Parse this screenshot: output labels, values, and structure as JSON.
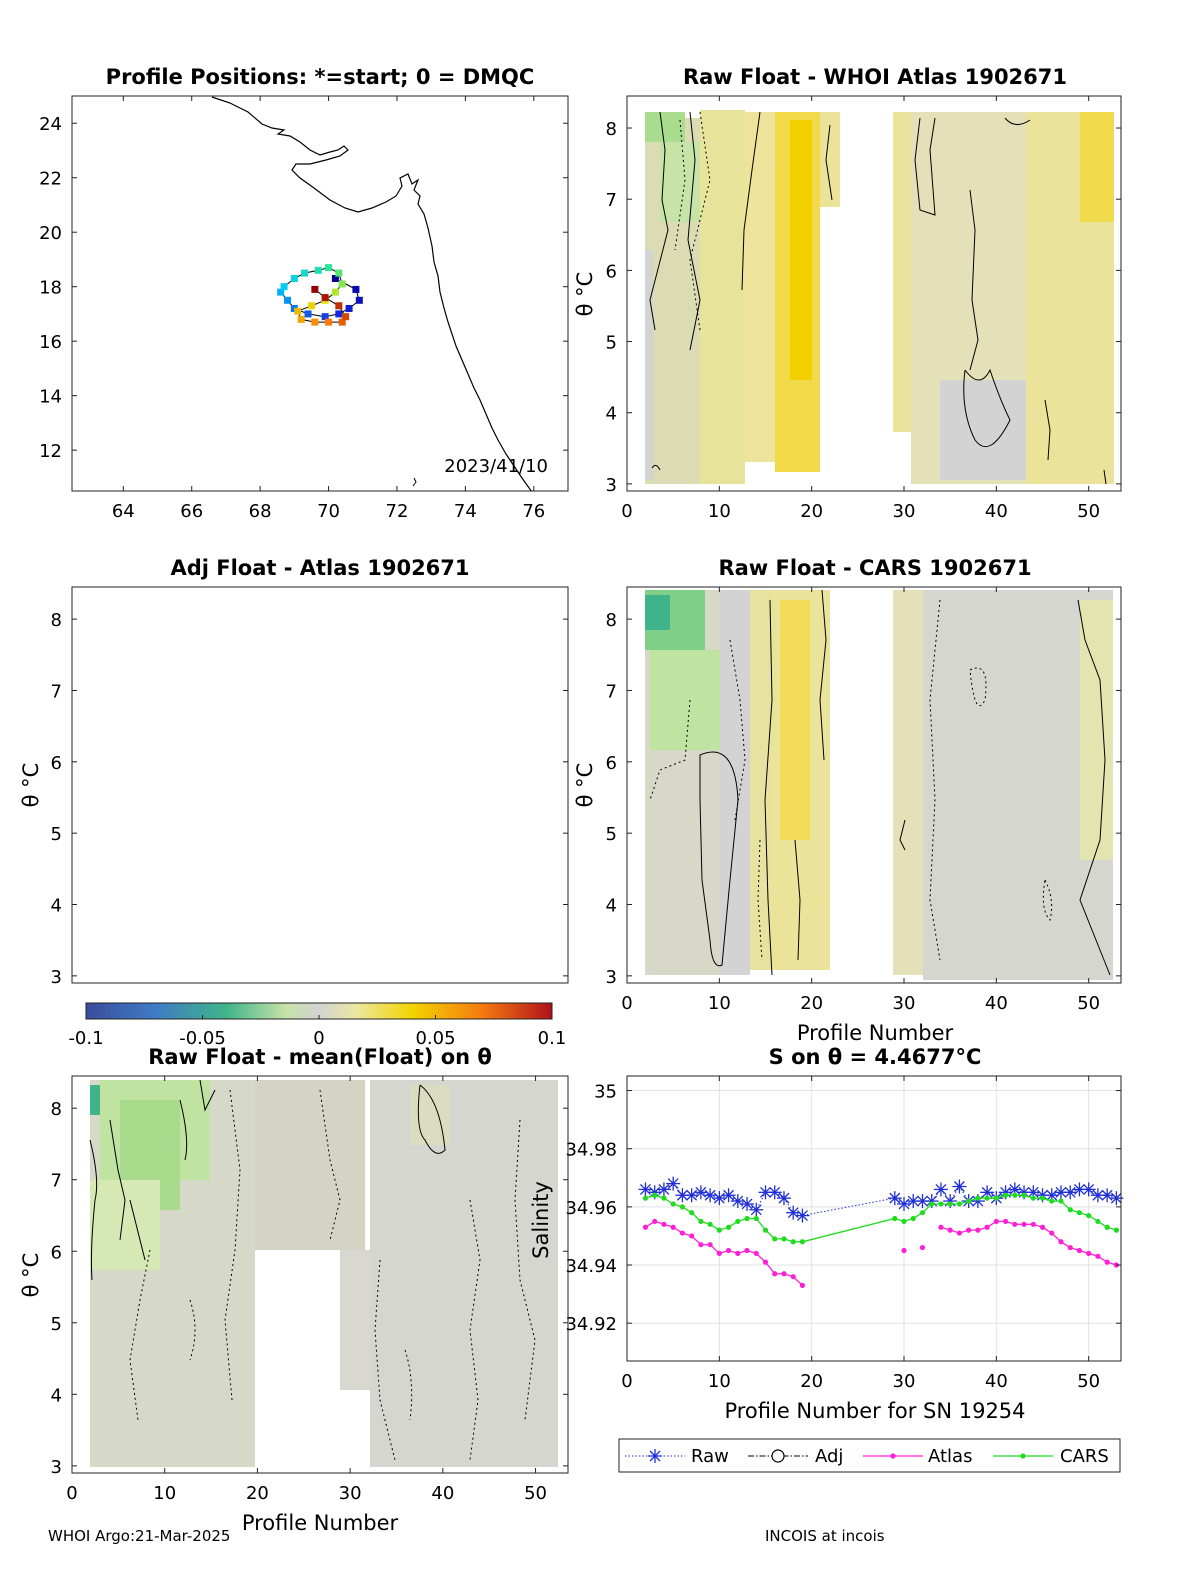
{
  "colors": {
    "raw": "#1f2fd6",
    "adj": "#000000",
    "atlas": "#ff1fd6",
    "cars": "#1fdc1f",
    "contour": "#000000",
    "no_diff": "#d3d3d3"
  },
  "panels": {
    "positions": {
      "title": "Profile Positions: *=start; 0 = DMQC",
      "date_label": "2023/41/10",
      "x_ticks": [
        "64",
        "66",
        "68",
        "70",
        "72",
        "74",
        "76"
      ],
      "y_ticks": [
        "12",
        "14",
        "16",
        "18",
        "20",
        "22",
        "24"
      ]
    },
    "whoi": {
      "title": "Raw Float - WHOI Atlas  1902671",
      "x_ticks": [
        "0",
        "10",
        "20",
        "30",
        "40",
        "50"
      ],
      "y_ticks": [
        "3",
        "4",
        "5",
        "6",
        "7",
        "8"
      ],
      "ylabel": "θ °C"
    },
    "adj": {
      "title": "Adj Float - Atlas  1902671",
      "y_ticks": [
        "3",
        "4",
        "5",
        "6",
        "7",
        "8"
      ],
      "ylabel": "θ °C"
    },
    "cars": {
      "title": "Raw Float - CARS  1902671",
      "x_ticks": [
        "0",
        "10",
        "20",
        "30",
        "40",
        "50"
      ],
      "y_ticks": [
        "3",
        "4",
        "5",
        "6",
        "7",
        "8"
      ],
      "xlabel": "Profile Number",
      "ylabel": "θ °C"
    },
    "mean": {
      "title": "Raw Float - mean(Float) on θ",
      "x_ticks": [
        "0",
        "10",
        "20",
        "30",
        "40",
        "50"
      ],
      "y_ticks": [
        "3",
        "4",
        "5",
        "6",
        "7",
        "8"
      ],
      "xlabel": "Profile Number",
      "ylabel": "θ °C"
    },
    "salinity": {
      "title": "S on θ = 4.4677°C",
      "x_ticks": [
        "0",
        "10",
        "20",
        "30",
        "40",
        "50"
      ],
      "y_ticks": [
        "34.92",
        "34.94",
        "34.96",
        "34.98",
        "35"
      ],
      "xlabel": "Profile Number for SN 19254",
      "ylabel": "Salinity"
    }
  },
  "colorbar": {
    "tick_labels": [
      "-0.1",
      "-0.05",
      "0",
      "0.05",
      "0.1"
    ],
    "range": [
      -0.1,
      0.1
    ]
  },
  "legend": {
    "raw": "Raw",
    "adj": "Adj",
    "atlas": "Atlas",
    "cars": "CARS"
  },
  "footer": {
    "left": "WHOI Argo:21-Mar-2025",
    "right": "INCOIS at incois"
  },
  "chart_data": [
    {
      "type": "scatter",
      "title": "Profile Positions: *=start; 0 = DMQC",
      "xlim": [
        62.5,
        77
      ],
      "ylim": [
        10.5,
        25
      ],
      "x": [
        70.2,
        70.8,
        70.9,
        70.6,
        70.3,
        69.9,
        69.4,
        69.0,
        68.8,
        68.6,
        68.7,
        69.0,
        69.3,
        69.7,
        70.0,
        70.3,
        70.4,
        70.2,
        69.9,
        69.5,
        69.1,
        69.2,
        69.6,
        70.0,
        70.4,
        70.5,
        70.3,
        69.9,
        69.6
      ],
      "y": [
        18.3,
        17.9,
        17.5,
        17.2,
        17.0,
        16.9,
        17.0,
        17.2,
        17.5,
        17.8,
        18.0,
        18.3,
        18.5,
        18.6,
        18.7,
        18.5,
        18.1,
        17.8,
        17.5,
        17.3,
        17.1,
        16.8,
        16.7,
        16.7,
        16.7,
        16.9,
        17.3,
        17.6,
        17.9
      ]
    },
    {
      "type": "heatmap",
      "title": "Raw Float - WHOI Atlas  1902671",
      "xlabel": "",
      "ylabel": "θ °C",
      "xlim": [
        0,
        53.5
      ],
      "ylim": [
        2.9,
        8.45
      ],
      "value_range": [
        -0.1,
        0.1
      ],
      "missing_profiles": [
        20,
        21,
        22,
        23,
        24,
        25,
        26,
        27,
        28,
        29
      ]
    },
    {
      "type": "heatmap",
      "title": "Adj Float - Atlas  1902671",
      "ylabel": "θ °C",
      "ylim": [
        2.9,
        8.45
      ],
      "value_range": [
        -0.1,
        0.1
      ]
    },
    {
      "type": "heatmap",
      "title": "Raw Float - CARS  1902671",
      "xlabel": "Profile Number",
      "ylabel": "θ °C",
      "xlim": [
        0,
        53.5
      ],
      "ylim": [
        2.9,
        8.45
      ],
      "value_range": [
        -0.1,
        0.1
      ],
      "missing_profiles": [
        20,
        21,
        22,
        23,
        24,
        25,
        26,
        27,
        28,
        29
      ]
    },
    {
      "type": "heatmap",
      "title": "Raw Float - mean(Float) on θ",
      "xlabel": "Profile Number",
      "ylabel": "θ °C",
      "xlim": [
        0,
        53.5
      ],
      "ylim": [
        2.9,
        8.45
      ],
      "value_range": [
        -0.1,
        0.1
      ]
    },
    {
      "type": "line",
      "title": "S on θ = 4.4677°C",
      "xlabel": "Profile Number for SN 19254",
      "ylabel": "Salinity",
      "xlim": [
        0,
        53.5
      ],
      "ylim": [
        34.907,
        35.005
      ],
      "grid": true,
      "legend_position": "below",
      "series": [
        {
          "name": "Raw",
          "x": [
            2,
            3,
            4,
            5,
            6,
            7,
            8,
            9,
            10,
            11,
            12,
            13,
            14,
            15,
            16,
            17,
            18,
            19,
            29,
            30,
            31,
            32,
            33,
            34,
            35,
            36,
            37,
            38,
            39,
            40,
            41,
            42,
            43,
            44,
            45,
            46,
            47,
            48,
            49,
            50,
            51,
            52,
            53
          ],
          "y": [
            34.966,
            34.965,
            34.966,
            34.968,
            34.964,
            34.964,
            34.965,
            34.964,
            34.963,
            34.964,
            34.962,
            34.961,
            34.959,
            34.965,
            34.965,
            34.963,
            34.958,
            34.957,
            34.963,
            34.961,
            34.962,
            34.962,
            34.962,
            34.966,
            34.962,
            34.967,
            34.962,
            34.962,
            34.965,
            34.963,
            34.965,
            34.966,
            34.965,
            34.965,
            34.964,
            34.964,
            34.965,
            34.965,
            34.966,
            34.966,
            34.964,
            34.964,
            34.963
          ]
        },
        {
          "name": "Atlas",
          "x": [
            2,
            3,
            4,
            5,
            6,
            7,
            8,
            9,
            10,
            11,
            12,
            13,
            14,
            15,
            16,
            17,
            18,
            19,
            30,
            32,
            34,
            35,
            36,
            37,
            38,
            39,
            40,
            41,
            42,
            43,
            44,
            45,
            46,
            47,
            48,
            49,
            50,
            51,
            52,
            53
          ],
          "y": [
            34.953,
            34.955,
            34.954,
            34.953,
            34.951,
            34.95,
            34.947,
            34.947,
            34.944,
            34.945,
            34.944,
            34.945,
            34.944,
            34.941,
            34.937,
            34.937,
            34.936,
            34.933,
            34.945,
            34.946,
            34.953,
            34.952,
            34.951,
            34.952,
            34.952,
            34.953,
            34.955,
            34.955,
            34.954,
            34.954,
            34.954,
            34.953,
            34.951,
            34.948,
            34.946,
            34.945,
            34.944,
            34.943,
            34.941,
            34.94
          ]
        },
        {
          "name": "CARS",
          "x": [
            2,
            3,
            4,
            5,
            6,
            7,
            8,
            9,
            10,
            11,
            12,
            13,
            14,
            15,
            16,
            17,
            18,
            19,
            29,
            30,
            31,
            32,
            33,
            34,
            35,
            36,
            37,
            38,
            39,
            40,
            41,
            42,
            43,
            44,
            45,
            46,
            47,
            48,
            49,
            50,
            51,
            52,
            53
          ],
          "y": [
            34.963,
            34.964,
            34.963,
            34.961,
            34.96,
            34.958,
            34.955,
            34.954,
            34.952,
            34.953,
            34.955,
            34.956,
            34.956,
            34.952,
            34.949,
            34.949,
            34.948,
            34.948,
            34.956,
            34.955,
            34.956,
            34.958,
            34.961,
            34.961,
            34.961,
            34.961,
            34.962,
            34.963,
            34.963,
            34.963,
            34.964,
            34.964,
            34.964,
            34.963,
            34.963,
            34.962,
            34.962,
            34.959,
            34.958,
            34.957,
            34.955,
            34.953,
            34.952
          ]
        },
        {
          "name": "Adj",
          "x": [],
          "y": []
        }
      ]
    }
  ]
}
